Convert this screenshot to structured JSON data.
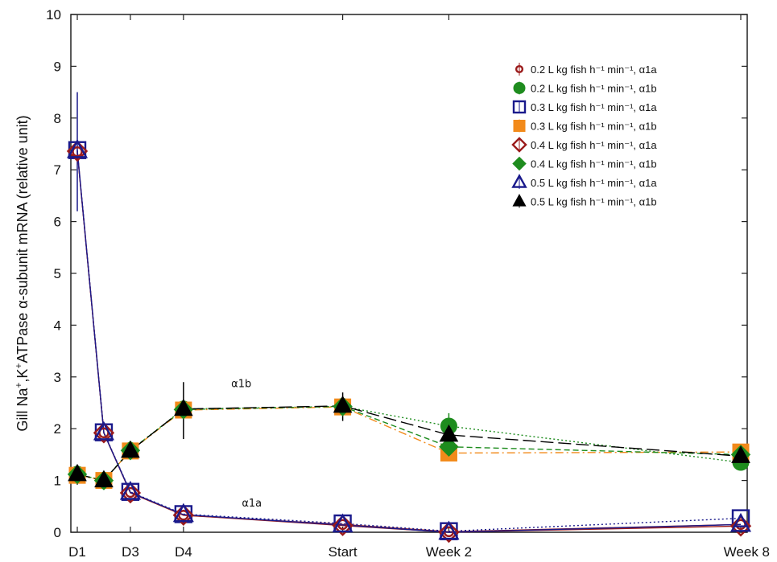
{
  "chart_data": {
    "type": "line",
    "ylabel_parts": [
      "Gill Na",
      "+",
      ",K",
      "+",
      "ATPase α-subunit mRNA (relative unit)"
    ],
    "x_ticks": [
      {
        "label": "D1",
        "x": 1
      },
      {
        "label": "D3",
        "x": 3
      },
      {
        "label": "D4",
        "x": 5
      },
      {
        "label": "Start",
        "x": 11
      },
      {
        "label": "Week 2",
        "x": 15
      },
      {
        "label": "Week 8",
        "x": 26
      }
    ],
    "xlim": [
      1,
      26
    ],
    "ylim": [
      0,
      10
    ],
    "y_ticks": [
      0,
      1,
      2,
      3,
      4,
      5,
      6,
      7,
      8,
      9,
      10
    ],
    "grid": false,
    "legend_position": "top-right",
    "annotations": [
      {
        "text": "α1b",
        "x": 6.8,
        "y": 2.8
      },
      {
        "text": "α1a",
        "x": 7.2,
        "y": 0.5
      }
    ],
    "series": [
      {
        "name": "0.2 L kg fish h⁻¹ min⁻¹, α1a",
        "marker": "circle-small",
        "color": "#9b1b1b",
        "line": "solid",
        "filled": false,
        "x": [
          1,
          2,
          3,
          5,
          11,
          15,
          26
        ],
        "y": [
          7.35,
          1.92,
          0.77,
          0.33,
          0.15,
          0.01,
          0.15
        ]
      },
      {
        "name": "0.2 L kg fish h⁻¹ min⁻¹, α1b",
        "marker": "circle",
        "color": "#1e8c1e",
        "line": "dotted",
        "filled": true,
        "x": [
          1,
          2,
          3,
          5,
          11,
          15,
          26
        ],
        "y": [
          1.12,
          1.0,
          1.58,
          2.38,
          2.43,
          2.05,
          1.35
        ]
      },
      {
        "name": "0.3 L kg fish h⁻¹ min⁻¹, α1a",
        "marker": "square",
        "color": "#1a1a8c",
        "line": "dotted",
        "filled": false,
        "x": [
          1,
          2,
          3,
          5,
          11,
          15,
          26
        ],
        "y": [
          7.38,
          1.93,
          0.78,
          0.35,
          0.17,
          0.02,
          0.27
        ]
      },
      {
        "name": "0.3 L kg fish h⁻¹ min⁻¹, α1b",
        "marker": "square",
        "color": "#f28a1a",
        "line": "dashdot",
        "filled": true,
        "x": [
          1,
          2,
          3,
          5,
          11,
          15,
          26
        ],
        "y": [
          1.1,
          1.0,
          1.57,
          2.36,
          2.42,
          1.53,
          1.55
        ]
      },
      {
        "name": "0.4 L kg fish h⁻¹ min⁻¹, α1a",
        "marker": "diamond",
        "color": "#9b1b1b",
        "line": "solid",
        "filled": false,
        "x": [
          1,
          2,
          3,
          5,
          11,
          15,
          26
        ],
        "y": [
          7.36,
          1.92,
          0.76,
          0.33,
          0.13,
          0.0,
          0.12
        ]
      },
      {
        "name": "0.4 L kg fish h⁻¹ min⁻¹, α1b",
        "marker": "diamond",
        "color": "#1e8c1e",
        "line": "dashed",
        "filled": true,
        "x": [
          1,
          2,
          3,
          5,
          11,
          15,
          26
        ],
        "y": [
          1.12,
          1.0,
          1.58,
          2.37,
          2.43,
          1.65,
          1.5
        ]
      },
      {
        "name": "0.5 L kg fish h⁻¹ min⁻¹, α1a",
        "marker": "triangle",
        "color": "#1a1a8c",
        "line": "solid",
        "filled": false,
        "x": [
          1,
          2,
          3,
          5,
          11,
          15,
          26
        ],
        "y": [
          7.37,
          1.92,
          0.77,
          0.34,
          0.14,
          0.0,
          0.15
        ]
      },
      {
        "name": "0.5 L kg fish h⁻¹ min⁻¹, α1b",
        "marker": "triangle",
        "color": "#000000",
        "line": "longdash",
        "filled": true,
        "x": [
          1,
          2,
          3,
          5,
          11,
          15,
          26
        ],
        "y": [
          1.12,
          1.0,
          1.57,
          2.38,
          2.44,
          1.88,
          1.47
        ]
      }
    ],
    "error_bars": [
      {
        "x": 1,
        "low": 6.2,
        "high": 8.5,
        "color": "#1a1a8c"
      },
      {
        "x": 1,
        "low": 0.92,
        "high": 1.3,
        "color": "#000000"
      },
      {
        "x": 5,
        "low": 1.8,
        "high": 2.9,
        "color": "#000000"
      },
      {
        "x": 11,
        "low": 2.15,
        "high": 2.7,
        "color": "#000000"
      },
      {
        "x": 15,
        "low": 1.85,
        "high": 2.3,
        "color": "#1e8c1e"
      }
    ]
  }
}
